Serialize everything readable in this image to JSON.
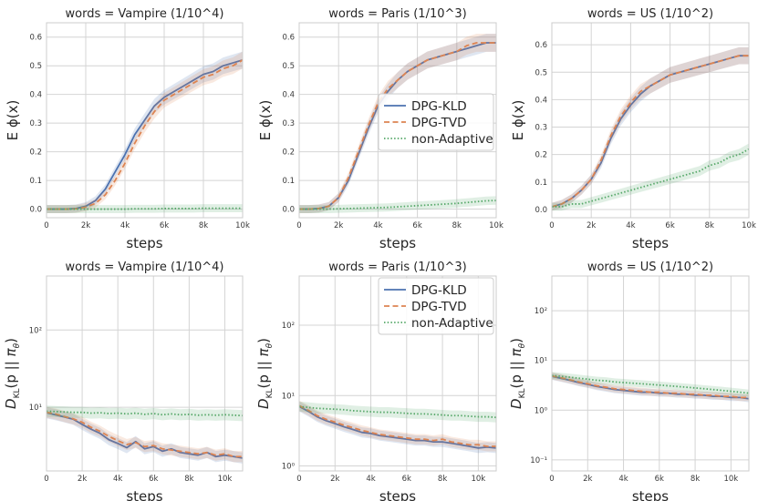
{
  "chart_data": [
    {
      "type": "line",
      "title": "words = Vampire (1/10^4)",
      "xlabel": "steps",
      "ylabel": "E ϕ(x)",
      "xlim": [
        0,
        10000
      ],
      "ylim": [
        -0.03,
        0.65
      ],
      "xticks": [
        0,
        2000,
        4000,
        6000,
        8000,
        10000
      ],
      "xtick_labels": [
        "0",
        "2k",
        "4k",
        "6k",
        "8k",
        "10k"
      ],
      "yticks": [
        0.0,
        0.1,
        0.2,
        0.3,
        0.4,
        0.5,
        0.6
      ],
      "ytick_labels": [
        "0.0",
        "0.1",
        "0.2",
        "0.3",
        "0.4",
        "0.5",
        "0.6"
      ],
      "grid": true,
      "legend": null,
      "x": [
        0,
        500,
        1000,
        1500,
        2000,
        2500,
        3000,
        3500,
        4000,
        4500,
        5000,
        5500,
        6000,
        6500,
        7000,
        7500,
        8000,
        8500,
        9000,
        9500,
        10000
      ],
      "series": [
        {
          "name": "DPG-KLD",
          "values": [
            0.0,
            0.0,
            0.0,
            0.002,
            0.01,
            0.03,
            0.07,
            0.13,
            0.19,
            0.26,
            0.31,
            0.36,
            0.39,
            0.41,
            0.43,
            0.45,
            0.47,
            0.48,
            0.5,
            0.51,
            0.52
          ]
        },
        {
          "name": "DPG-TVD",
          "values": [
            0.0,
            0.0,
            0.0,
            0.001,
            0.007,
            0.02,
            0.05,
            0.1,
            0.16,
            0.23,
            0.29,
            0.34,
            0.38,
            0.4,
            0.42,
            0.44,
            0.46,
            0.47,
            0.49,
            0.5,
            0.52
          ]
        },
        {
          "name": "non-Adaptive",
          "values": [
            0.0,
            0.0,
            0.0,
            0.0,
            0.0,
            0.0,
            0.0,
            0.0,
            0.0,
            0.001,
            0.001,
            0.001,
            0.002,
            0.002,
            0.002,
            0.002,
            0.003,
            0.003,
            0.003,
            0.003,
            0.003
          ]
        }
      ]
    },
    {
      "type": "line",
      "title": "words = Paris (1/10^3)",
      "xlabel": "steps",
      "ylabel": "E ϕ(x)",
      "xlim": [
        0,
        10000
      ],
      "ylim": [
        -0.03,
        0.65
      ],
      "xticks": [
        0,
        2000,
        4000,
        6000,
        8000,
        10000
      ],
      "xtick_labels": [
        "0",
        "2k",
        "4k",
        "6k",
        "8k",
        "10k"
      ],
      "yticks": [
        0.0,
        0.1,
        0.2,
        0.3,
        0.4,
        0.5,
        0.6
      ],
      "ytick_labels": [
        "0.0",
        "0.1",
        "0.2",
        "0.3",
        "0.4",
        "0.5",
        "0.6"
      ],
      "grid": true,
      "legend": "center-right",
      "x": [
        0,
        500,
        1000,
        1500,
        2000,
        2500,
        3000,
        3500,
        4000,
        4500,
        5000,
        5500,
        6000,
        6500,
        7000,
        7500,
        8000,
        8500,
        9000,
        9500,
        10000
      ],
      "series": [
        {
          "name": "DPG-KLD",
          "values": [
            0.0,
            0.0,
            0.002,
            0.01,
            0.04,
            0.1,
            0.19,
            0.28,
            0.36,
            0.41,
            0.45,
            0.48,
            0.5,
            0.52,
            0.53,
            0.54,
            0.55,
            0.56,
            0.57,
            0.58,
            0.58
          ]
        },
        {
          "name": "DPG-TVD",
          "values": [
            0.0,
            0.0,
            0.002,
            0.01,
            0.04,
            0.11,
            0.2,
            0.29,
            0.37,
            0.42,
            0.45,
            0.48,
            0.5,
            0.52,
            0.53,
            0.54,
            0.55,
            0.57,
            0.58,
            0.58,
            0.58
          ]
        },
        {
          "name": "non-Adaptive",
          "values": [
            0.0,
            0.0,
            0.0,
            0.0,
            0.001,
            0.002,
            0.003,
            0.004,
            0.005,
            0.006,
            0.008,
            0.01,
            0.012,
            0.014,
            0.016,
            0.018,
            0.02,
            0.023,
            0.026,
            0.029,
            0.03
          ]
        }
      ]
    },
    {
      "type": "line",
      "title": "words = US (1/10^2)",
      "xlabel": "steps",
      "ylabel": "E ϕ(x)",
      "xlim": [
        0,
        10000
      ],
      "ylim": [
        -0.03,
        0.68
      ],
      "xticks": [
        0,
        2000,
        4000,
        6000,
        8000,
        10000
      ],
      "xtick_labels": [
        "0",
        "2k",
        "4k",
        "6k",
        "8k",
        "10k"
      ],
      "yticks": [
        0.0,
        0.1,
        0.2,
        0.3,
        0.4,
        0.5,
        0.6
      ],
      "ytick_labels": [
        "0.0",
        "0.1",
        "0.2",
        "0.3",
        "0.4",
        "0.5",
        "0.6"
      ],
      "grid": true,
      "legend": null,
      "x": [
        0,
        500,
        1000,
        1500,
        2000,
        2500,
        3000,
        3500,
        4000,
        4500,
        5000,
        5500,
        6000,
        6500,
        7000,
        7500,
        8000,
        8500,
        9000,
        9500,
        10000
      ],
      "series": [
        {
          "name": "DPG-KLD",
          "values": [
            0.01,
            0.02,
            0.04,
            0.07,
            0.11,
            0.17,
            0.26,
            0.33,
            0.38,
            0.42,
            0.45,
            0.47,
            0.49,
            0.5,
            0.51,
            0.52,
            0.53,
            0.54,
            0.55,
            0.56,
            0.56
          ]
        },
        {
          "name": "DPG-TVD",
          "values": [
            0.01,
            0.02,
            0.04,
            0.07,
            0.11,
            0.18,
            0.27,
            0.34,
            0.39,
            0.43,
            0.45,
            0.47,
            0.49,
            0.5,
            0.51,
            0.52,
            0.53,
            0.54,
            0.55,
            0.56,
            0.56
          ]
        },
        {
          "name": "non-Adaptive",
          "values": [
            0.01,
            0.01,
            0.02,
            0.02,
            0.03,
            0.04,
            0.05,
            0.06,
            0.07,
            0.08,
            0.09,
            0.1,
            0.11,
            0.12,
            0.13,
            0.14,
            0.16,
            0.17,
            0.19,
            0.2,
            0.22
          ]
        }
      ]
    },
    {
      "type": "line",
      "title": "words = Vampire (1/10^4)",
      "xlabel": "steps",
      "ylabel": "D_KL(p || π_θ)",
      "yscale": "log",
      "xlim": [
        0,
        11000
      ],
      "ylim": [
        1.5,
        500
      ],
      "xticks": [
        0,
        2000,
        4000,
        6000,
        8000,
        10000
      ],
      "xtick_labels": [
        "0",
        "2k",
        "4k",
        "6k",
        "8k",
        "10k"
      ],
      "yticks": [
        10,
        100
      ],
      "ytick_labels": [
        "10¹",
        "10²"
      ],
      "grid": true,
      "legend": null,
      "x": [
        0,
        500,
        1000,
        1500,
        2000,
        2500,
        3000,
        3500,
        4000,
        4500,
        5000,
        5500,
        6000,
        6500,
        7000,
        7500,
        8000,
        8500,
        9000,
        9500,
        10000,
        10500,
        11000
      ],
      "series": [
        {
          "name": "DPG-KLD",
          "values": [
            8.5,
            8.0,
            7.5,
            7.0,
            6.0,
            5.2,
            4.6,
            3.8,
            3.4,
            3.0,
            3.6,
            2.9,
            3.1,
            2.7,
            2.9,
            2.6,
            2.5,
            2.4,
            2.6,
            2.3,
            2.4,
            2.3,
            2.2
          ]
        },
        {
          "name": "DPG-TVD",
          "values": [
            8.6,
            8.2,
            7.6,
            7.1,
            6.4,
            5.5,
            4.9,
            4.2,
            3.7,
            3.3,
            3.5,
            3.1,
            3.2,
            2.9,
            2.8,
            2.7,
            2.6,
            2.5,
            2.6,
            2.4,
            2.5,
            2.3,
            2.3
          ]
        },
        {
          "name": "non-Adaptive",
          "values": [
            8.9,
            8.8,
            8.7,
            8.6,
            8.6,
            8.4,
            8.5,
            8.3,
            8.4,
            8.2,
            8.4,
            8.1,
            8.3,
            8.0,
            8.2,
            8.0,
            8.1,
            7.9,
            8.0,
            7.9,
            8.0,
            7.9,
            7.8
          ]
        }
      ]
    },
    {
      "type": "line",
      "title": "words = Paris (1/10^3)",
      "xlabel": "steps",
      "ylabel": "D_KL(p || π_θ)",
      "yscale": "log",
      "xlim": [
        0,
        11000
      ],
      "ylim": [
        0.85,
        500
      ],
      "xticks": [
        0,
        2000,
        4000,
        6000,
        8000,
        10000
      ],
      "xtick_labels": [
        "0",
        "2k",
        "4k",
        "6k",
        "8k",
        "10k"
      ],
      "yticks": [
        1,
        10,
        100
      ],
      "ytick_labels": [
        "10⁰",
        "10¹",
        "10²"
      ],
      "grid": true,
      "legend": "top-right",
      "x": [
        0,
        500,
        1000,
        1500,
        2000,
        2500,
        3000,
        3500,
        4000,
        4500,
        5000,
        5500,
        6000,
        6500,
        7000,
        7500,
        8000,
        8500,
        9000,
        9500,
        10000,
        10500,
        11000
      ],
      "series": [
        {
          "name": "DPG-KLD",
          "values": [
            7.0,
            6.0,
            5.0,
            4.4,
            4.0,
            3.6,
            3.3,
            3.0,
            2.9,
            2.7,
            2.6,
            2.5,
            2.4,
            2.3,
            2.3,
            2.2,
            2.2,
            2.1,
            2.0,
            1.9,
            1.8,
            1.85,
            1.8
          ]
        },
        {
          "name": "DPG-TVD",
          "values": [
            7.2,
            6.2,
            5.2,
            4.6,
            4.2,
            3.8,
            3.5,
            3.2,
            3.0,
            2.8,
            2.7,
            2.6,
            2.5,
            2.4,
            2.4,
            2.3,
            2.4,
            2.2,
            2.1,
            2.0,
            2.0,
            1.9,
            1.9
          ]
        },
        {
          "name": "non-Adaptive",
          "values": [
            7.0,
            6.8,
            6.6,
            6.5,
            6.4,
            6.3,
            6.1,
            6.0,
            5.9,
            5.8,
            5.8,
            5.7,
            5.6,
            5.5,
            5.5,
            5.4,
            5.3,
            5.2,
            5.2,
            5.1,
            5.0,
            5.0,
            4.9
          ]
        }
      ]
    },
    {
      "type": "line",
      "title": "words = US (1/10^2)",
      "xlabel": "steps",
      "ylabel": "D_KL(p || π_θ)",
      "yscale": "log",
      "xlim": [
        0,
        11000
      ],
      "ylim": [
        0.06,
        500
      ],
      "xticks": [
        0,
        2000,
        4000,
        6000,
        8000,
        10000
      ],
      "xtick_labels": [
        "0",
        "2k",
        "4k",
        "6k",
        "8k",
        "10k"
      ],
      "yticks": [
        0.1,
        1,
        10,
        100
      ],
      "ytick_labels": [
        "10⁻¹",
        "10⁰",
        "10¹",
        "10²"
      ],
      "grid": true,
      "legend": null,
      "x": [
        0,
        500,
        1000,
        1500,
        2000,
        2500,
        3000,
        3500,
        4000,
        4500,
        5000,
        5500,
        6000,
        6500,
        7000,
        7500,
        8000,
        8500,
        9000,
        9500,
        10000,
        10500,
        11000
      ],
      "series": [
        {
          "name": "DPG-KLD",
          "values": [
            4.8,
            4.4,
            4.0,
            3.6,
            3.3,
            3.0,
            2.8,
            2.6,
            2.5,
            2.4,
            2.3,
            2.3,
            2.2,
            2.2,
            2.1,
            2.1,
            2.0,
            2.0,
            1.9,
            1.9,
            1.8,
            1.8,
            1.7
          ]
        },
        {
          "name": "DPG-TVD",
          "values": [
            4.9,
            4.5,
            4.1,
            3.7,
            3.4,
            3.1,
            2.9,
            2.7,
            2.6,
            2.5,
            2.4,
            2.3,
            2.3,
            2.2,
            2.2,
            2.1,
            2.1,
            2.0,
            2.0,
            1.9,
            1.9,
            1.8,
            1.8
          ]
        },
        {
          "name": "non-Adaptive",
          "values": [
            5.0,
            4.8,
            4.6,
            4.4,
            4.2,
            4.0,
            3.9,
            3.7,
            3.6,
            3.5,
            3.4,
            3.3,
            3.2,
            3.1,
            3.0,
            2.9,
            2.8,
            2.7,
            2.6,
            2.5,
            2.4,
            2.3,
            2.2
          ]
        }
      ]
    }
  ],
  "colors": {
    "DPG-KLD": "#4c72b0",
    "DPG-TVD": "#dd8452",
    "non-Adaptive": "#55a868",
    "grid": "#d4d4d4",
    "axes_edge": "#cccccc"
  }
}
